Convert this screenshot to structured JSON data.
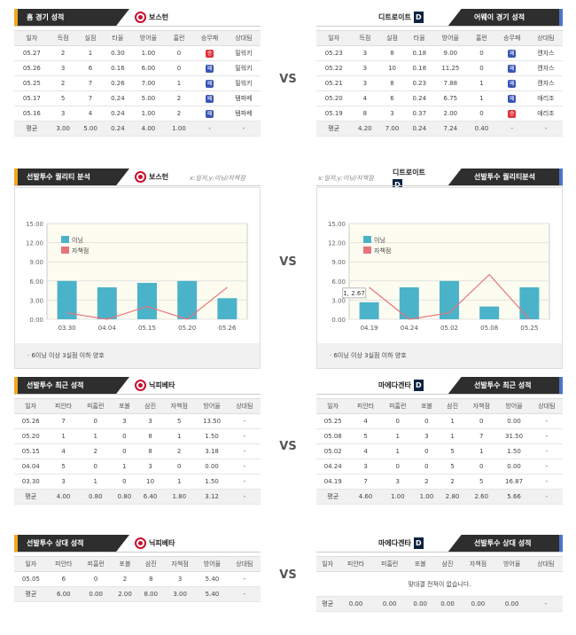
{
  "vs_label": "VS",
  "recent": {
    "left": {
      "title": "홈 경기 성적",
      "team": "보스턴",
      "columns": [
        "일자",
        "득점",
        "실점",
        "타율",
        "방어율",
        "홈런",
        "승무패",
        "상대팀"
      ],
      "rows": [
        {
          "date": "05.27",
          "r": "2",
          "ra": "1",
          "avg": "0.30",
          "era": "1.00",
          "hr": "0",
          "res": "승",
          "res_color": "red",
          "opp": "밀워키"
        },
        {
          "date": "05.26",
          "r": "3",
          "ra": "6",
          "avg": "0.16",
          "era": "6.00",
          "hr": "0",
          "res": "패",
          "res_color": "blue",
          "opp": "밀워키"
        },
        {
          "date": "05.25",
          "r": "2",
          "ra": "7",
          "avg": "0.26",
          "era": "7.00",
          "hr": "1",
          "res": "패",
          "res_color": "blue",
          "opp": "밀워키"
        },
        {
          "date": "05.17",
          "r": "5",
          "ra": "7",
          "avg": "0.24",
          "era": "5.00",
          "hr": "2",
          "res": "패",
          "res_color": "blue",
          "opp": "탬파베"
        },
        {
          "date": "05.16",
          "r": "3",
          "ra": "4",
          "avg": "0.24",
          "era": "1.00",
          "hr": "2",
          "res": "패",
          "res_color": "blue",
          "opp": "탬파베"
        }
      ],
      "avg_row": [
        "평균",
        "3.00",
        "5.00",
        "0.24",
        "4.00",
        "1.00",
        "-",
        "-"
      ]
    },
    "right": {
      "title": "어웨이 경기 성적",
      "team": "디트로이트",
      "columns": [
        "일자",
        "득점",
        "실점",
        "타율",
        "방어율",
        "홈런",
        "승무패",
        "상대팀"
      ],
      "rows": [
        {
          "date": "05.23",
          "r": "3",
          "ra": "8",
          "avg": "0.18",
          "era": "9.00",
          "hr": "0",
          "res": "패",
          "res_color": "blue",
          "opp": "캔자스"
        },
        {
          "date": "05.22",
          "r": "3",
          "ra": "10",
          "avg": "0.18",
          "era": "11.25",
          "hr": "0",
          "res": "패",
          "res_color": "blue",
          "opp": "캔자스"
        },
        {
          "date": "05.21",
          "r": "3",
          "ra": "8",
          "avg": "0.23",
          "era": "7.88",
          "hr": "1",
          "res": "패",
          "res_color": "blue",
          "opp": "캔자스"
        },
        {
          "date": "05.20",
          "r": "4",
          "ra": "6",
          "avg": "0.24",
          "era": "6.75",
          "hr": "1",
          "res": "패",
          "res_color": "blue",
          "opp": "애리조"
        },
        {
          "date": "05.19",
          "r": "8",
          "ra": "3",
          "avg": "0.37",
          "era": "2.00",
          "hr": "0",
          "res": "승",
          "res_color": "red",
          "opp": "애리조"
        }
      ],
      "avg_row": [
        "평균",
        "4.20",
        "7.00",
        "0.24",
        "7.24",
        "0.40",
        "-",
        "-"
      ]
    }
  },
  "quality": {
    "left": {
      "title": "선발투수 퀄리티 분석",
      "team": "보스턴",
      "axis_note": "x:일자,y:이닝/자책점",
      "note": "6이닝 이상 3실점 이하 양호"
    },
    "right": {
      "title": "선발투수 퀄리티분석",
      "team": "디트로이트",
      "axis_note": "x:일자,y:이닝/자책점",
      "note": "6이닝 이상 3실점 이하 양호"
    }
  },
  "chart_data": [
    {
      "type": "bar",
      "categories": [
        "03.30",
        "04.04",
        "05.15",
        "05.20",
        "05.26"
      ],
      "series": [
        {
          "name": "이닝",
          "type": "bar",
          "values": [
            6,
            5,
            5.7,
            6,
            3.3
          ],
          "color": "#4bb3c9"
        },
        {
          "name": "자책점",
          "type": "line",
          "values": [
            1,
            0,
            2,
            0,
            5
          ],
          "color": "#e8737b"
        }
      ],
      "ylim": [
        0,
        15
      ],
      "yticks": [
        "0.00",
        "3.00",
        "6.00",
        "9.00",
        "12.00",
        "15.00"
      ]
    },
    {
      "type": "bar",
      "categories": [
        "04.19",
        "04.24",
        "05.02",
        "05.08",
        "05.25"
      ],
      "series": [
        {
          "name": "이닝",
          "type": "bar",
          "values": [
            2.67,
            5,
            6,
            2,
            5
          ],
          "color": "#4bb3c9"
        },
        {
          "name": "자책점",
          "type": "line",
          "values": [
            5,
            0,
            1,
            7,
            0
          ],
          "color": "#e8737b"
        }
      ],
      "ylim": [
        0,
        15
      ],
      "yticks": [
        "0.00",
        "3.00",
        "6.00",
        "9.00",
        "12.00",
        "15.00"
      ],
      "annotation": "1, 2.67"
    }
  ],
  "pitcher_recent": {
    "left": {
      "title": "선발투수 최근 성적",
      "team": "닉피베타",
      "columns": [
        "일자",
        "피안타",
        "피홈런",
        "포볼",
        "삼진",
        "자책점",
        "방어율",
        "상대팀"
      ],
      "rows": [
        [
          "05.26",
          "7",
          "0",
          "3",
          "3",
          "5",
          "13.50",
          "-"
        ],
        [
          "05.20",
          "1",
          "1",
          "0",
          "8",
          "1",
          "1.50",
          "-"
        ],
        [
          "05.15",
          "4",
          "2",
          "0",
          "8",
          "2",
          "3.18",
          "-"
        ],
        [
          "04.04",
          "5",
          "0",
          "1",
          "3",
          "0",
          "0.00",
          "-"
        ],
        [
          "03.30",
          "3",
          "1",
          "0",
          "10",
          "1",
          "1.50",
          "-"
        ]
      ],
      "avg_row": [
        "평균",
        "4.00",
        "0.80",
        "0.80",
        "6.40",
        "1.80",
        "3.12",
        "-"
      ]
    },
    "right": {
      "title": "선발투수 최근 성적",
      "team": "마에다겐타",
      "columns": [
        "일자",
        "피안타",
        "피홈런",
        "포볼",
        "삼진",
        "자책점",
        "방어율",
        "상대팀"
      ],
      "rows": [
        [
          "05.25",
          "4",
          "0",
          "0",
          "1",
          "0",
          "0.00",
          "-"
        ],
        [
          "05.08",
          "5",
          "1",
          "3",
          "1",
          "7",
          "31.50",
          "-"
        ],
        [
          "05.02",
          "4",
          "1",
          "0",
          "5",
          "1",
          "1.50",
          "-"
        ],
        [
          "04.24",
          "3",
          "0",
          "0",
          "5",
          "0",
          "0.00",
          "-"
        ],
        [
          "04.19",
          "7",
          "3",
          "2",
          "2",
          "5",
          "16.87",
          "-"
        ]
      ],
      "avg_row": [
        "평균",
        "4.60",
        "1.00",
        "1.00",
        "2.80",
        "2.60",
        "5.66",
        "-"
      ]
    }
  },
  "pitcher_vs": {
    "left": {
      "title": "선발투수 상대 성적",
      "team": "닉피베타",
      "columns": [
        "일자",
        "피안타",
        "피홈런",
        "포볼",
        "삼진",
        "자책점",
        "방어율",
        "상대팀"
      ],
      "rows": [
        [
          "05.05",
          "6",
          "0",
          "2",
          "8",
          "3",
          "5.40",
          "-"
        ]
      ],
      "avg_row": [
        "평균",
        "6.00",
        "0.00",
        "2.00",
        "8.00",
        "3.00",
        "5.40",
        "-"
      ]
    },
    "right": {
      "title": "선발투수 상대 성적",
      "team": "마에다겐타",
      "columns": [
        "일자",
        "피안타",
        "피홈런",
        "포볼",
        "삼진",
        "자책점",
        "방어율",
        "상대팀"
      ],
      "empty": "맞대결 전적이 없습니다.",
      "avg_row": [
        "평균",
        "0.00",
        "0.00",
        "0.00",
        "0.00",
        "0.00",
        "0.00",
        "-"
      ]
    }
  }
}
